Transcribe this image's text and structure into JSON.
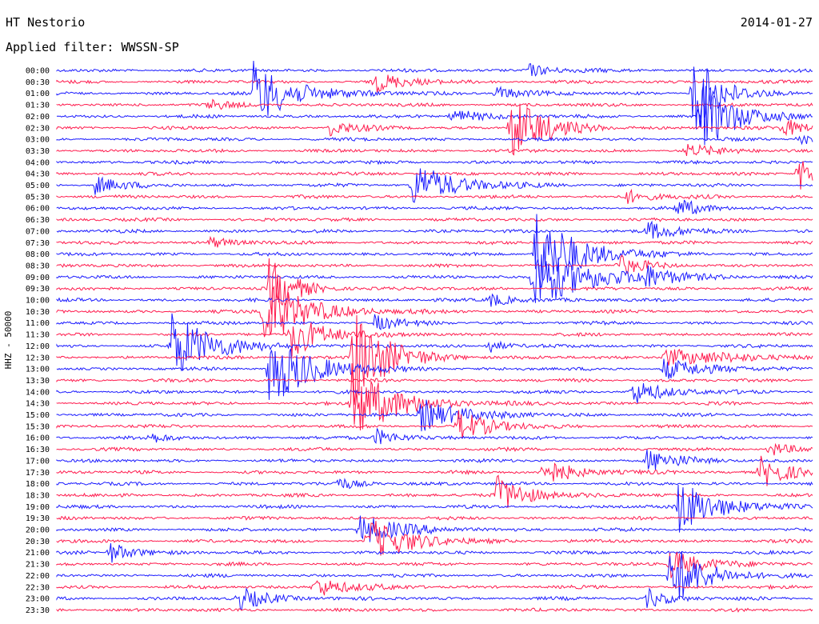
{
  "header": {
    "station": "HT Nestorio",
    "date": "2014-01-27",
    "filter": "Applied filter: WWSSN-SP"
  },
  "chart_data": {
    "type": "helicorder",
    "ylabel": "HHZ - 50000",
    "colors": {
      "a": "#1a1aff",
      "b": "#ff1a4d"
    },
    "row_labels": [
      "00:00",
      "00:30",
      "01:00",
      "01:30",
      "02:00",
      "02:30",
      "03:00",
      "03:30",
      "04:00",
      "04:30",
      "05:00",
      "05:30",
      "06:00",
      "06:30",
      "07:00",
      "07:30",
      "08:00",
      "08:30",
      "09:00",
      "09:30",
      "10:00",
      "10:30",
      "11:00",
      "11:30",
      "12:00",
      "12:30",
      "13:00",
      "13:30",
      "14:00",
      "14:30",
      "15:00",
      "15:30",
      "16:00",
      "16:30",
      "17:00",
      "17:30",
      "18:00",
      "18:30",
      "19:00",
      "19:30",
      "20:00",
      "20:30",
      "21:00",
      "21:30",
      "22:00",
      "22:30",
      "23:00",
      "23:30"
    ],
    "events": [
      {
        "row": 0,
        "x": 0.62,
        "amp": 10,
        "width": 0.03
      },
      {
        "row": 1,
        "x": 0.42,
        "amp": 12,
        "width": 0.04
      },
      {
        "row": 2,
        "x": 0.26,
        "amp": 40,
        "width": 0.05
      },
      {
        "row": 2,
        "x": 0.58,
        "amp": 10,
        "width": 0.03
      },
      {
        "row": 2,
        "x": 0.84,
        "amp": 60,
        "width": 0.03
      },
      {
        "row": 3,
        "x": 0.2,
        "amp": 6,
        "width": 0.03
      },
      {
        "row": 4,
        "x": 0.52,
        "amp": 10,
        "width": 0.04
      },
      {
        "row": 4,
        "x": 0.85,
        "amp": 50,
        "width": 0.04
      },
      {
        "row": 5,
        "x": 0.36,
        "amp": 10,
        "width": 0.03
      },
      {
        "row": 5,
        "x": 0.6,
        "amp": 45,
        "width": 0.04
      },
      {
        "row": 5,
        "x": 0.96,
        "amp": 12,
        "width": 0.03
      },
      {
        "row": 6,
        "x": 0.98,
        "amp": 10,
        "width": 0.02
      },
      {
        "row": 7,
        "x": 0.83,
        "amp": 8,
        "width": 0.04
      },
      {
        "row": 9,
        "x": 0.98,
        "amp": 25,
        "width": 0.02
      },
      {
        "row": 10,
        "x": 0.05,
        "amp": 12,
        "width": 0.03
      },
      {
        "row": 10,
        "x": 0.47,
        "amp": 30,
        "width": 0.05
      },
      {
        "row": 11,
        "x": 0.75,
        "amp": 10,
        "width": 0.03
      },
      {
        "row": 12,
        "x": 0.82,
        "amp": 12,
        "width": 0.03
      },
      {
        "row": 14,
        "x": 0.78,
        "amp": 12,
        "width": 0.04
      },
      {
        "row": 15,
        "x": 0.2,
        "amp": 8,
        "width": 0.03
      },
      {
        "row": 16,
        "x": 0.63,
        "amp": 60,
        "width": 0.05
      },
      {
        "row": 17,
        "x": 0.74,
        "amp": 14,
        "width": 0.03
      },
      {
        "row": 18,
        "x": 0.63,
        "amp": 45,
        "width": 0.06
      },
      {
        "row": 18,
        "x": 0.77,
        "amp": 14,
        "width": 0.04
      },
      {
        "row": 19,
        "x": 0.28,
        "amp": 40,
        "width": 0.03
      },
      {
        "row": 20,
        "x": 0.57,
        "amp": 10,
        "width": 0.03
      },
      {
        "row": 21,
        "x": 0.27,
        "amp": 50,
        "width": 0.05
      },
      {
        "row": 22,
        "x": 0.42,
        "amp": 10,
        "width": 0.03
      },
      {
        "row": 23,
        "x": 0.31,
        "amp": 30,
        "width": 0.04
      },
      {
        "row": 24,
        "x": 0.15,
        "amp": 45,
        "width": 0.05
      },
      {
        "row": 24,
        "x": 0.57,
        "amp": 10,
        "width": 0.02
      },
      {
        "row": 25,
        "x": 0.39,
        "amp": 70,
        "width": 0.04
      },
      {
        "row": 25,
        "x": 0.8,
        "amp": 12,
        "width": 0.08
      },
      {
        "row": 26,
        "x": 0.28,
        "amp": 50,
        "width": 0.05
      },
      {
        "row": 26,
        "x": 0.8,
        "amp": 14,
        "width": 0.05
      },
      {
        "row": 28,
        "x": 0.76,
        "amp": 16,
        "width": 0.04
      },
      {
        "row": 29,
        "x": 0.39,
        "amp": 50,
        "width": 0.05
      },
      {
        "row": 30,
        "x": 0.48,
        "amp": 22,
        "width": 0.05
      },
      {
        "row": 31,
        "x": 0.53,
        "amp": 20,
        "width": 0.04
      },
      {
        "row": 32,
        "x": 0.12,
        "amp": 6,
        "width": 0.03
      },
      {
        "row": 32,
        "x": 0.42,
        "amp": 12,
        "width": 0.03
      },
      {
        "row": 33,
        "x": 0.94,
        "amp": 10,
        "width": 0.03
      },
      {
        "row": 34,
        "x": 0.78,
        "amp": 14,
        "width": 0.04
      },
      {
        "row": 35,
        "x": 0.64,
        "amp": 18,
        "width": 0.04
      },
      {
        "row": 35,
        "x": 0.93,
        "amp": 20,
        "width": 0.04
      },
      {
        "row": 36,
        "x": 0.37,
        "amp": 8,
        "width": 0.03
      },
      {
        "row": 37,
        "x": 0.58,
        "amp": 25,
        "width": 0.04
      },
      {
        "row": 38,
        "x": 0.82,
        "amp": 35,
        "width": 0.05
      },
      {
        "row": 40,
        "x": 0.4,
        "amp": 20,
        "width": 0.05
      },
      {
        "row": 41,
        "x": 0.41,
        "amp": 30,
        "width": 0.05
      },
      {
        "row": 42,
        "x": 0.07,
        "amp": 14,
        "width": 0.03
      },
      {
        "row": 43,
        "x": 0.81,
        "amp": 20,
        "width": 0.04
      },
      {
        "row": 44,
        "x": 0.81,
        "amp": 45,
        "width": 0.04
      },
      {
        "row": 45,
        "x": 0.34,
        "amp": 14,
        "width": 0.04
      },
      {
        "row": 46,
        "x": 0.24,
        "amp": 14,
        "width": 0.04
      },
      {
        "row": 46,
        "x": 0.78,
        "amp": 12,
        "width": 0.03
      }
    ]
  }
}
